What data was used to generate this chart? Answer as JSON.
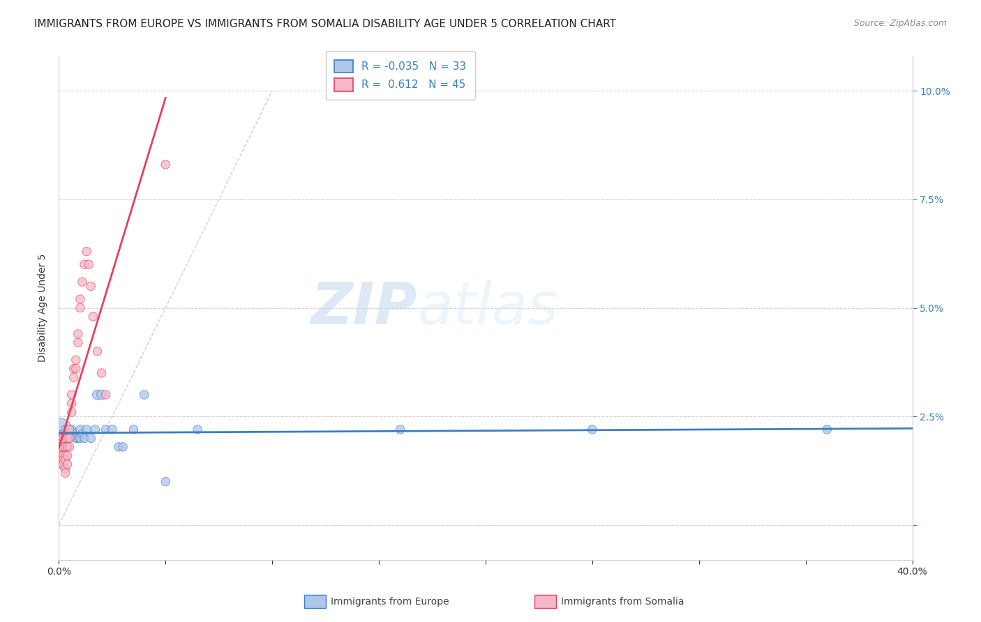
{
  "title": "IMMIGRANTS FROM EUROPE VS IMMIGRANTS FROM SOMALIA DISABILITY AGE UNDER 5 CORRELATION CHART",
  "source": "Source: ZipAtlas.com",
  "ylabel": "Disability Age Under 5",
  "xlim": [
    0,
    0.4
  ],
  "ylim": [
    -0.008,
    0.108
  ],
  "yticks": [
    0.0,
    0.025,
    0.05,
    0.075,
    0.1
  ],
  "ytick_labels": [
    "",
    "2.5%",
    "5.0%",
    "7.5%",
    "10.0%"
  ],
  "xticks": [
    0.0,
    0.05,
    0.1,
    0.15,
    0.2,
    0.25,
    0.3,
    0.35,
    0.4
  ],
  "xtick_labels": [
    "0.0%",
    "",
    "",
    "",
    "",
    "",
    "",
    "",
    "40.0%"
  ],
  "europe_R": -0.035,
  "europe_N": 33,
  "somalia_R": 0.612,
  "somalia_N": 45,
  "europe_color": "#aec6e8",
  "somalia_color": "#f5b8c8",
  "europe_line_color": "#3a7fc1",
  "somalia_line_color": "#e8405a",
  "legend_europe_label": "Immigrants from Europe",
  "legend_somalia_label": "Immigrants from Somalia",
  "europe_scatter_x": [
    0.001,
    0.002,
    0.002,
    0.003,
    0.003,
    0.004,
    0.004,
    0.005,
    0.005,
    0.006,
    0.007,
    0.008,
    0.009,
    0.01,
    0.01,
    0.011,
    0.012,
    0.013,
    0.015,
    0.017,
    0.018,
    0.02,
    0.022,
    0.025,
    0.028,
    0.03,
    0.035,
    0.04,
    0.05,
    0.065,
    0.16,
    0.25,
    0.36
  ],
  "europe_scatter_y": [
    0.022,
    0.019,
    0.021,
    0.02,
    0.022,
    0.018,
    0.02,
    0.021,
    0.02,
    0.022,
    0.021,
    0.02,
    0.02,
    0.022,
    0.02,
    0.021,
    0.02,
    0.022,
    0.02,
    0.022,
    0.03,
    0.03,
    0.022,
    0.022,
    0.018,
    0.018,
    0.022,
    0.03,
    0.01,
    0.022,
    0.022,
    0.022,
    0.022
  ],
  "europe_scatter_size": [
    500,
    80,
    80,
    80,
    80,
    80,
    80,
    80,
    80,
    80,
    80,
    80,
    80,
    80,
    80,
    80,
    80,
    80,
    80,
    80,
    100,
    100,
    80,
    80,
    80,
    80,
    80,
    80,
    80,
    80,
    80,
    80,
    80
  ],
  "somalia_scatter_x": [
    0.001,
    0.001,
    0.001,
    0.001,
    0.001,
    0.001,
    0.002,
    0.002,
    0.002,
    0.002,
    0.002,
    0.002,
    0.003,
    0.003,
    0.003,
    0.003,
    0.003,
    0.004,
    0.004,
    0.004,
    0.004,
    0.005,
    0.005,
    0.005,
    0.006,
    0.006,
    0.006,
    0.007,
    0.007,
    0.008,
    0.008,
    0.009,
    0.009,
    0.01,
    0.01,
    0.011,
    0.012,
    0.013,
    0.014,
    0.015,
    0.016,
    0.018,
    0.02,
    0.022,
    0.05
  ],
  "somalia_scatter_y": [
    0.02,
    0.018,
    0.017,
    0.016,
    0.015,
    0.014,
    0.02,
    0.019,
    0.018,
    0.016,
    0.015,
    0.014,
    0.018,
    0.016,
    0.015,
    0.013,
    0.012,
    0.02,
    0.018,
    0.016,
    0.014,
    0.022,
    0.02,
    0.018,
    0.03,
    0.028,
    0.026,
    0.036,
    0.034,
    0.038,
    0.036,
    0.044,
    0.042,
    0.052,
    0.05,
    0.056,
    0.06,
    0.063,
    0.06,
    0.055,
    0.048,
    0.04,
    0.035,
    0.03,
    0.083
  ],
  "somalia_scatter_size": [
    80,
    80,
    80,
    80,
    80,
    80,
    80,
    80,
    80,
    80,
    80,
    80,
    80,
    80,
    80,
    80,
    80,
    80,
    80,
    80,
    80,
    80,
    80,
    80,
    80,
    80,
    80,
    80,
    80,
    80,
    80,
    80,
    80,
    80,
    80,
    80,
    80,
    80,
    80,
    80,
    80,
    80,
    80,
    80,
    80
  ],
  "watermark_zip": "ZIP",
  "watermark_atlas": "atlas",
  "background_color": "#ffffff",
  "grid_color": "#cccccc",
  "title_fontsize": 11,
  "axis_label_fontsize": 10,
  "tick_fontsize": 10
}
